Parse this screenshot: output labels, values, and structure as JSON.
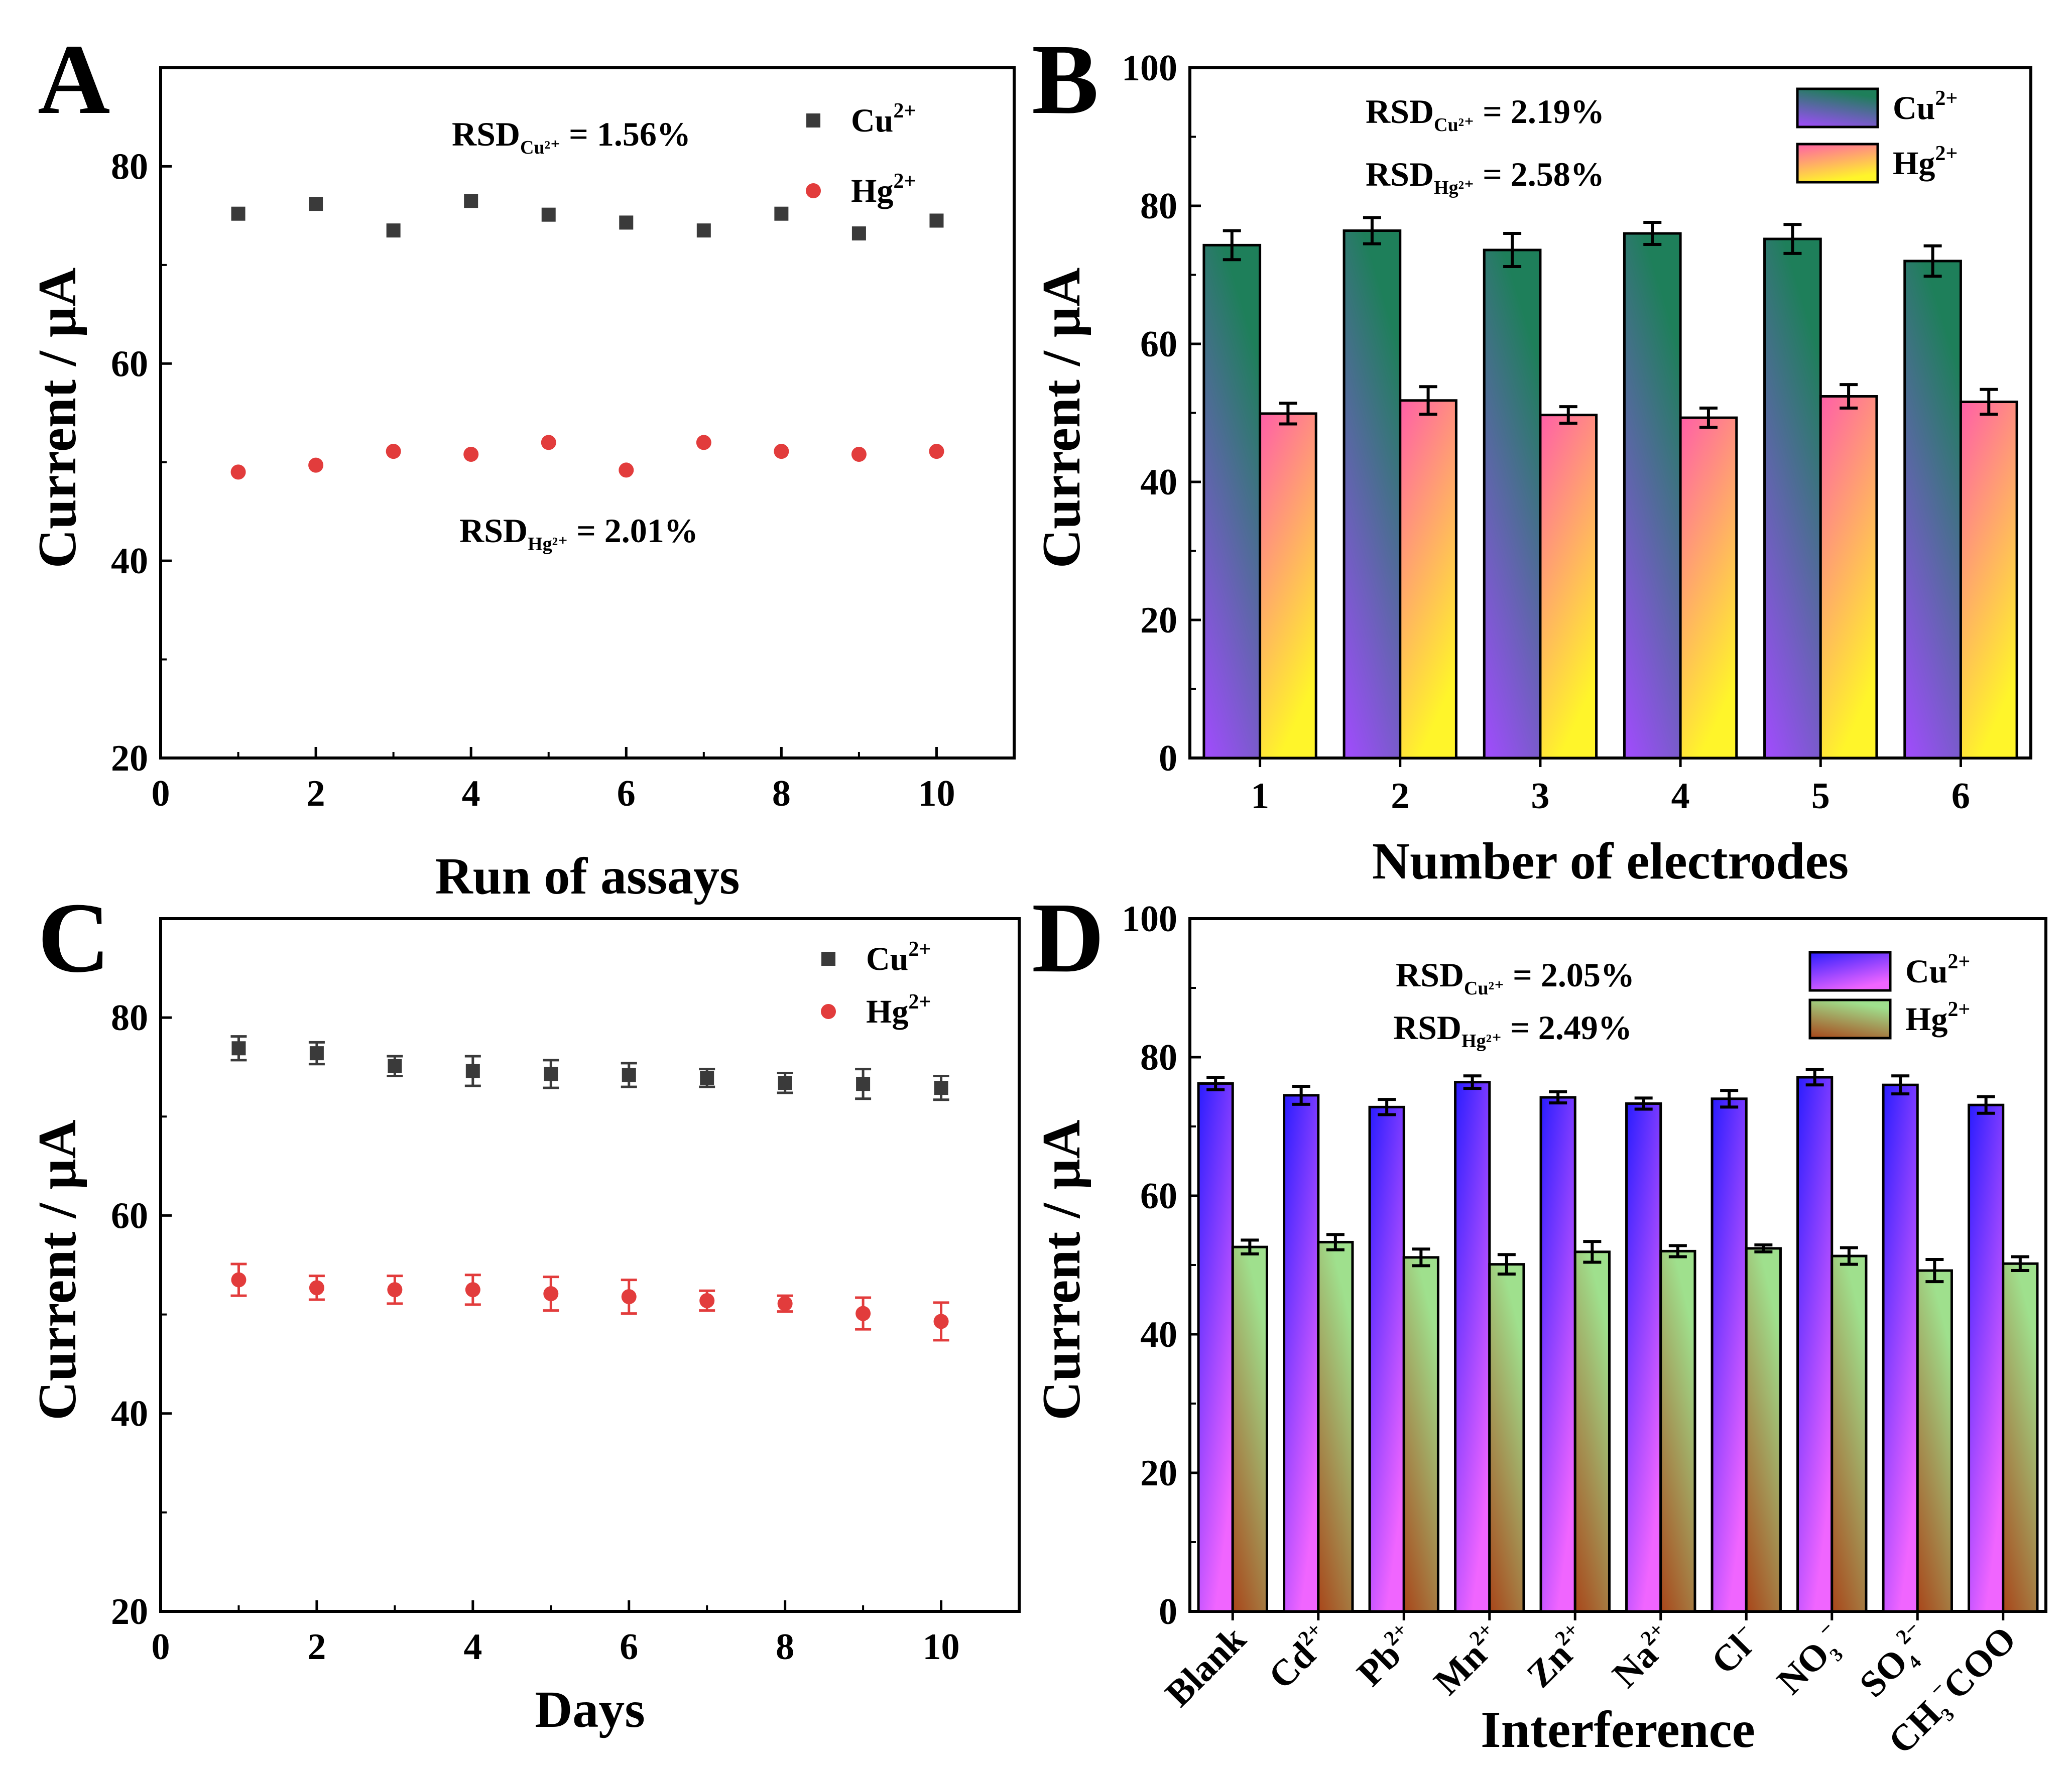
{
  "colors": {
    "cu_marker": "#3a3a3a",
    "hg_marker": "#e23c3c",
    "axis": "#000000",
    "errbar": "#000000"
  },
  "chart_data": [
    {
      "id": "A",
      "type": "scatter",
      "panel_label": "A",
      "xlabel": "Run of assays",
      "ylabel": "Current / μA",
      "xlim": [
        0,
        11
      ],
      "ylim": [
        20,
        90
      ],
      "xticks": [
        0,
        2,
        4,
        6,
        8,
        10
      ],
      "yticks": [
        20,
        40,
        60,
        80
      ],
      "x": [
        1,
        2,
        3,
        4,
        5,
        6,
        7,
        8,
        9,
        10
      ],
      "series": [
        {
          "name": "Cu2+",
          "label_base": "Cu",
          "label_sup": "2+",
          "marker": "square",
          "values": [
            75.2,
            76.2,
            73.5,
            76.5,
            75.1,
            74.3,
            73.5,
            75.2,
            73.2,
            74.5
          ]
        },
        {
          "name": "Hg2+",
          "label_base": "Hg",
          "label_sup": "2+",
          "marker": "circle",
          "values": [
            49.0,
            49.7,
            51.1,
            50.8,
            52.0,
            49.2,
            52.0,
            51.1,
            50.8,
            51.1
          ]
        }
      ],
      "annotations": [
        {
          "base": "RSD",
          "sub": "Cu²⁺",
          "text": " = 1.56%"
        },
        {
          "base": "RSD",
          "sub": "Hg²⁺",
          "text": " = 2.01%"
        }
      ]
    },
    {
      "id": "B",
      "type": "bar",
      "panel_label": "B",
      "xlabel": "Number of electrodes",
      "ylabel": "Current / μA",
      "ylim": [
        0,
        100
      ],
      "yticks": [
        0,
        20,
        40,
        60,
        80,
        100
      ],
      "categories": [
        "1",
        "2",
        "3",
        "4",
        "5",
        "6"
      ],
      "series": [
        {
          "name": "Cu2+",
          "label_base": "Cu",
          "label_sup": "2+",
          "fill": "purple-teal",
          "values": [
            74.3,
            76.4,
            73.6,
            76.0,
            75.2,
            72.0
          ],
          "errors": [
            2.1,
            1.9,
            2.4,
            1.6,
            2.1,
            2.2
          ]
        },
        {
          "name": "Hg2+",
          "label_base": "Hg",
          "label_sup": "2+",
          "fill": "pink-yellow",
          "values": [
            49.9,
            51.8,
            49.7,
            49.3,
            52.4,
            51.6
          ],
          "errors": [
            1.5,
            2.0,
            1.2,
            1.4,
            1.7,
            1.8
          ]
        }
      ],
      "annotations": [
        {
          "base": "RSD",
          "sub": "Cu²⁺",
          "text": " = 2.19%"
        },
        {
          "base": "RSD",
          "sub": "Hg²⁺",
          "text": " = 2.58%"
        }
      ]
    },
    {
      "id": "C",
      "type": "scatter",
      "panel_label": "C",
      "xlabel": "Days",
      "ylabel": "Current / μA",
      "xlim": [
        0,
        11
      ],
      "ylim": [
        20,
        90
      ],
      "xticks": [
        0,
        2,
        4,
        6,
        8,
        10
      ],
      "yticks": [
        20,
        40,
        60,
        80
      ],
      "x": [
        1,
        2,
        3,
        4,
        5,
        6,
        7,
        8,
        9,
        10
      ],
      "series": [
        {
          "name": "Cu2+",
          "label_base": "Cu",
          "label_sup": "2+",
          "marker": "square",
          "values": [
            76.9,
            76.4,
            75.1,
            74.6,
            74.3,
            74.2,
            73.9,
            73.4,
            73.3,
            72.9
          ],
          "errors": [
            1.2,
            1.1,
            1.0,
            1.5,
            1.4,
            1.2,
            0.9,
            1.0,
            1.5,
            1.2
          ]
        },
        {
          "name": "Hg2+",
          "label_base": "Hg",
          "label_sup": "2+",
          "marker": "circle",
          "values": [
            53.5,
            52.7,
            52.5,
            52.5,
            52.1,
            51.8,
            51.4,
            51.1,
            50.1,
            49.3
          ],
          "errors": [
            1.6,
            1.2,
            1.4,
            1.5,
            1.7,
            1.7,
            1.0,
            0.8,
            1.6,
            1.9
          ]
        }
      ]
    },
    {
      "id": "D",
      "type": "bar",
      "panel_label": "D",
      "xlabel": "Interference",
      "ylabel": "Current / μA",
      "ylim": [
        0,
        100
      ],
      "yticks": [
        0,
        20,
        40,
        60,
        80,
        100
      ],
      "categories": [
        {
          "base": "Blank",
          "sup": "",
          "sub": "",
          "tail": ""
        },
        {
          "base": "Cd",
          "sup": "2+",
          "sub": "",
          "tail": ""
        },
        {
          "base": "Pb",
          "sup": "2+",
          "sub": "",
          "tail": ""
        },
        {
          "base": "Mn",
          "sup": "2+",
          "sub": "",
          "tail": ""
        },
        {
          "base": "Zn",
          "sup": "2+",
          "sub": "",
          "tail": ""
        },
        {
          "base": "Na",
          "sup": "2+",
          "sub": "",
          "tail": ""
        },
        {
          "base": "Cl",
          "sup": "−",
          "sub": "",
          "tail": ""
        },
        {
          "base": "NO",
          "sup": "−",
          "sub": "3",
          "tail": ""
        },
        {
          "base": "SO",
          "sup": "2−",
          "sub": "4",
          "tail": ""
        },
        {
          "base": "CH",
          "sup": "−",
          "sub": "3",
          "tail": "COO"
        }
      ],
      "series": [
        {
          "name": "Cu2+",
          "label_base": "Cu",
          "label_sup": "2+",
          "fill": "blue-magenta",
          "values": [
            76.2,
            74.5,
            72.8,
            76.4,
            74.2,
            73.3,
            74.0,
            77.1,
            76.0,
            73.1
          ],
          "errors": [
            0.9,
            1.3,
            1.1,
            0.9,
            0.8,
            0.8,
            1.2,
            1.1,
            1.3,
            1.2
          ]
        },
        {
          "name": "Hg2+",
          "label_base": "Hg",
          "label_sup": "2+",
          "fill": "brown-green",
          "values": [
            52.6,
            53.3,
            51.1,
            50.1,
            51.9,
            52.0,
            52.4,
            51.3,
            49.2,
            50.2
          ],
          "errors": [
            1.0,
            1.1,
            1.2,
            1.4,
            1.5,
            0.8,
            0.5,
            1.2,
            1.6,
            1.0
          ]
        }
      ],
      "annotations": [
        {
          "base": "RSD",
          "sub": "Cu²⁺",
          "text": " = 2.05%"
        },
        {
          "base": "RSD",
          "sub": "Hg²⁺",
          "text": " = 2.49%"
        }
      ]
    }
  ]
}
